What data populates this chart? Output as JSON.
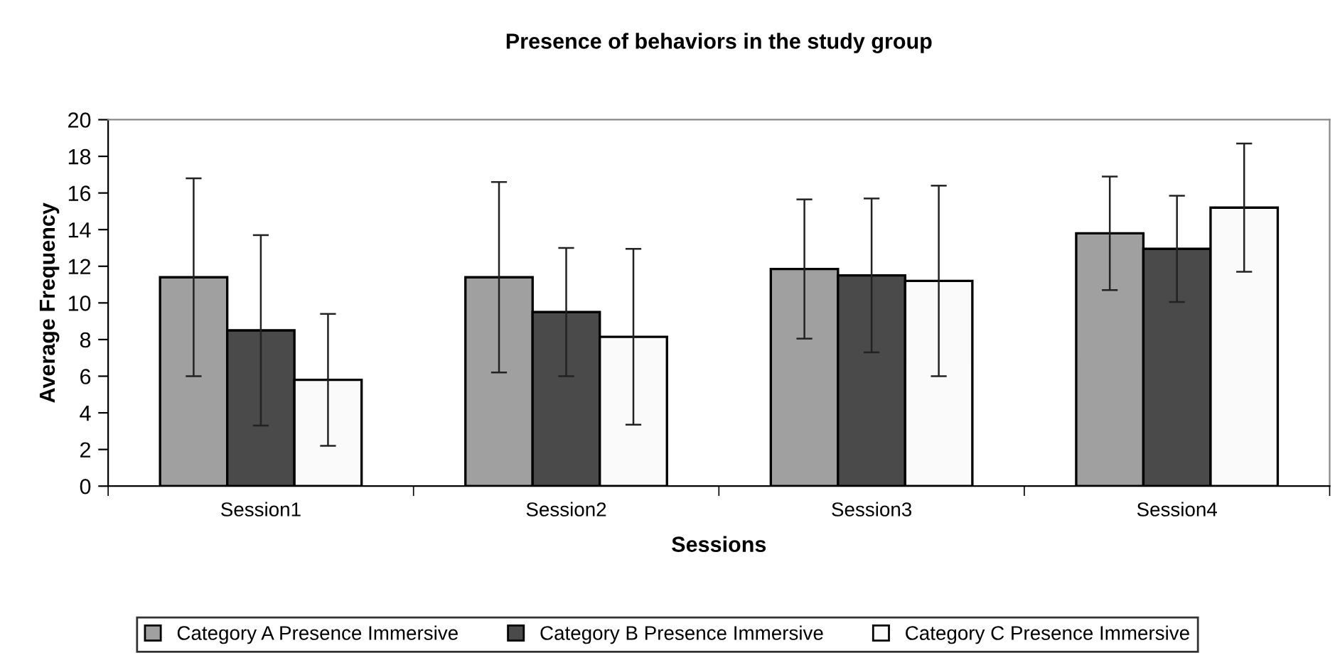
{
  "chart_data": {
    "type": "bar",
    "title": "Presence of behaviors in the study group",
    "xlabel": "Sessions",
    "ylabel": "Average Frequency",
    "categories": [
      "Session1",
      "Session2",
      "Session3",
      "Session4"
    ],
    "series": [
      {
        "name": "Category A Presence Immersive",
        "color": "#a0a0a0",
        "values": [
          11.4,
          11.4,
          11.85,
          13.8
        ],
        "errors": [
          5.4,
          5.2,
          3.8,
          3.1
        ]
      },
      {
        "name": "Category B Presence Immersive",
        "color": "#4a4a4a",
        "values": [
          8.5,
          9.5,
          11.5,
          12.95
        ],
        "errors": [
          5.2,
          3.5,
          4.2,
          2.9
        ]
      },
      {
        "name": "Category C Presence Immersive",
        "color": "#fafafa",
        "values": [
          5.8,
          8.15,
          11.2,
          15.2
        ],
        "errors": [
          3.6,
          4.8,
          5.2,
          3.5
        ]
      }
    ],
    "ylim": [
      0,
      20
    ],
    "yticks": [
      0,
      2,
      4,
      6,
      8,
      10,
      12,
      14,
      16,
      18,
      20
    ],
    "grid": false,
    "legend": "bottom"
  }
}
